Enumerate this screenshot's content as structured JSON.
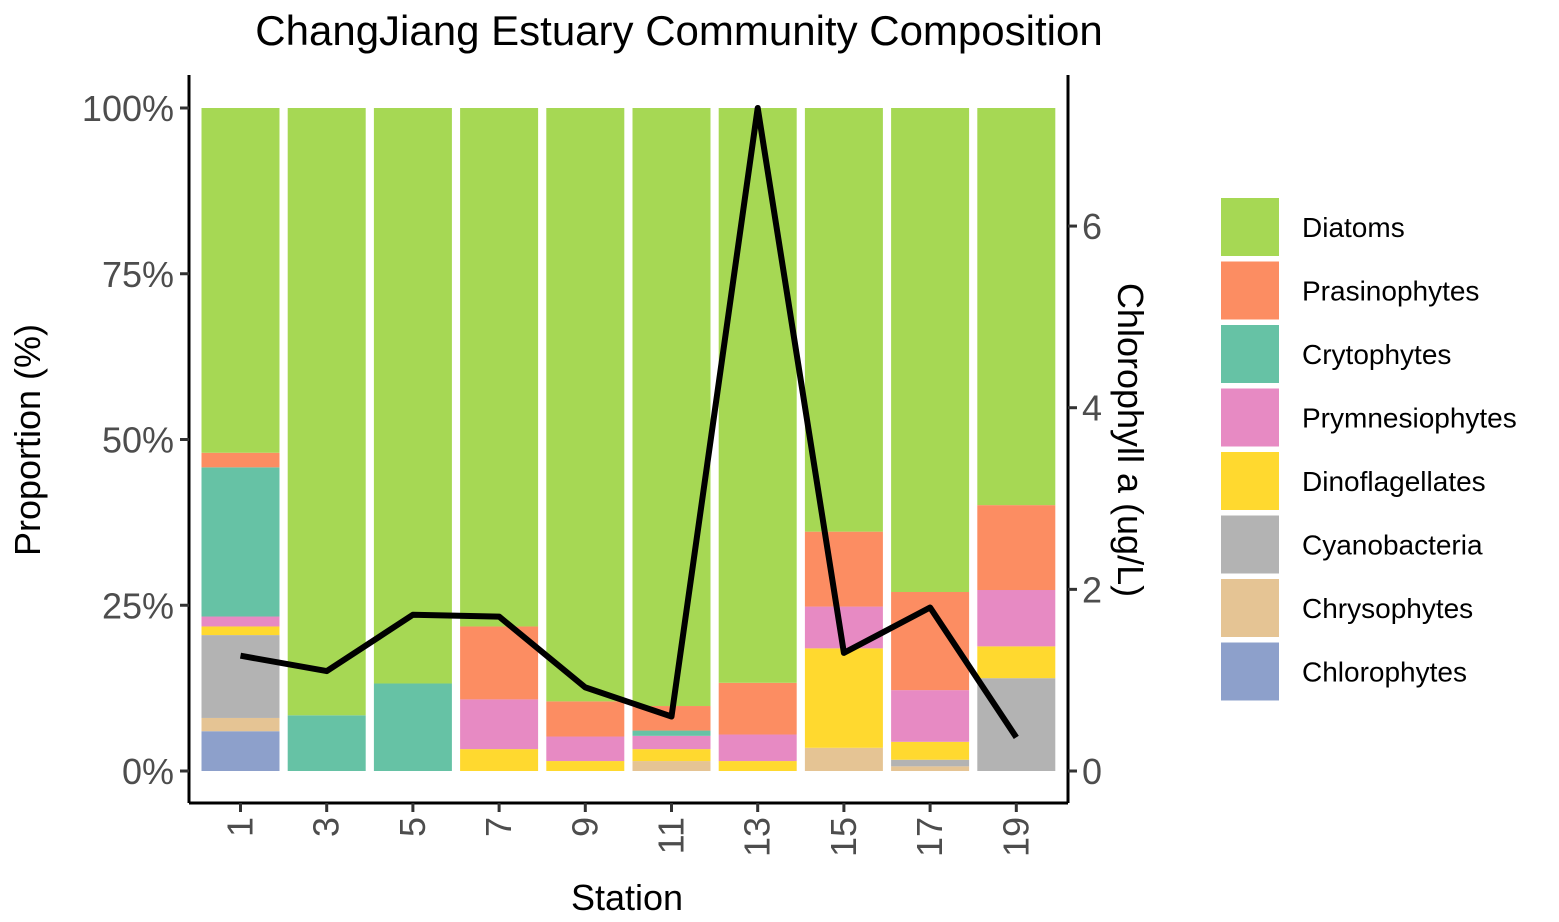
{
  "chart_data": {
    "type": "bar",
    "stacked": true,
    "title": "ChangJiang Estuary Community Composition",
    "xlabel": "Station",
    "ylabel": "Proportion (%)",
    "y2label": "Chlorophyll a (ug/L)",
    "categories": [
      "1",
      "3",
      "5",
      "7",
      "9",
      "11",
      "13",
      "15",
      "17",
      "19"
    ],
    "ylim": [
      0,
      100
    ],
    "yticks": [
      "0%",
      "25%",
      "50%",
      "75%",
      "100%"
    ],
    "y2lim": [
      0,
      7.3
    ],
    "y2ticks": [
      "0",
      "2",
      "4",
      "6"
    ],
    "grid": false,
    "legend_position": "right",
    "series": [
      {
        "name": "Chlorophytes",
        "color": "#8da0cb",
        "values": [
          6.0,
          0,
          0,
          0,
          0,
          0,
          0,
          0,
          0,
          0
        ]
      },
      {
        "name": "Chrysophytes",
        "color": "#e5c494",
        "values": [
          2.0,
          0,
          0,
          0,
          0,
          1.5,
          0,
          3.5,
          0.7,
          0
        ]
      },
      {
        "name": "Cyanobacteria",
        "color": "#b3b3b3",
        "values": [
          12.5,
          0,
          0,
          0,
          0,
          0,
          0,
          0,
          1.0,
          14.0
        ]
      },
      {
        "name": "Dinoflagellates",
        "color": "#ffd92f",
        "values": [
          1.3,
          0,
          0,
          3.3,
          1.5,
          1.8,
          1.5,
          15.0,
          2.7,
          4.8
        ]
      },
      {
        "name": "Prymnesiophytes",
        "color": "#e78ac3",
        "values": [
          1.5,
          0,
          0,
          7.5,
          3.7,
          2.0,
          4.0,
          6.3,
          7.8,
          8.5
        ]
      },
      {
        "name": "Crytophytes",
        "color": "#66c2a5",
        "values": [
          22.5,
          8.4,
          13.2,
          0,
          0,
          0.8,
          0,
          0,
          0,
          0
        ]
      },
      {
        "name": "Prasinophytes",
        "color": "#fc8d62",
        "values": [
          2.2,
          0,
          0,
          11.0,
          5.3,
          3.7,
          7.8,
          11.3,
          14.8,
          12.8
        ]
      },
      {
        "name": "Diatoms",
        "color": "#a6d854",
        "values": [
          52.0,
          91.6,
          86.8,
          78.2,
          89.5,
          90.2,
          86.7,
          63.9,
          73.0,
          59.9
        ]
      }
    ],
    "line": {
      "name": "Chlorophyll a (ug/L)",
      "color": "#000000",
      "values": [
        1.27,
        1.1,
        1.72,
        1.7,
        0.92,
        0.6,
        7.3,
        1.3,
        1.8,
        0.37
      ]
    },
    "legend_order": [
      "Diatoms",
      "Prasinophytes",
      "Crytophytes",
      "Prymnesiophytes",
      "Dinoflagellates",
      "Cyanobacteria",
      "Chrysophytes",
      "Chlorophytes"
    ]
  }
}
